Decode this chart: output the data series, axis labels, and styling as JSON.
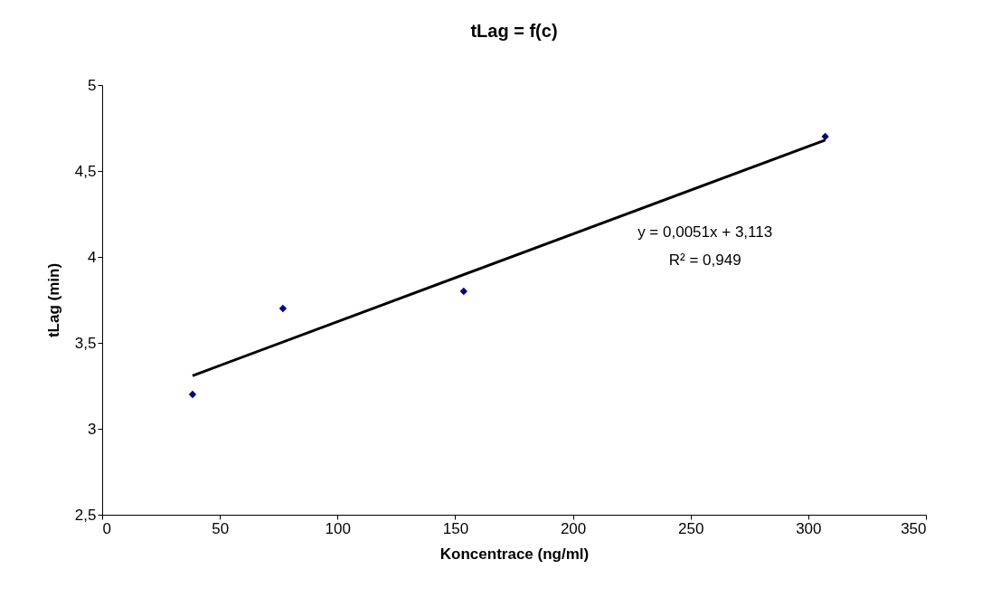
{
  "chart_data": {
    "type": "scatter",
    "title": "tLag = f(c)",
    "xlabel": "Koncentrace (ng/ml)",
    "ylabel": "tLag (min)",
    "series": [
      {
        "type": "scatter",
        "color": "#000080",
        "x": [
          38.4,
          76.8,
          153.6,
          307.2
        ],
        "values": [
          3.2,
          3.7,
          3.8,
          4.7
        ],
        "marker": "diamond"
      },
      {
        "type": "line",
        "color": "#000000",
        "x": [
          38.4,
          307.2
        ],
        "values": [
          3.309,
          4.68
        ],
        "line_style": "solid"
      }
    ],
    "annotations": [
      "y = 0,0051x + 3,113",
      "R² = 0,949"
    ],
    "xlim": [
      0,
      350
    ],
    "xticks": [
      0,
      50,
      100,
      150,
      200,
      250,
      300,
      350
    ],
    "ylim": [
      2.5,
      5
    ],
    "yticks": [
      {
        "value": 2.5,
        "label": "2,5"
      },
      3,
      {
        "value": 3.5,
        "label": "3,5"
      },
      4,
      {
        "value": 4.5,
        "label": "4,5"
      },
      5
    ],
    "grid": false,
    "legend": false
  }
}
